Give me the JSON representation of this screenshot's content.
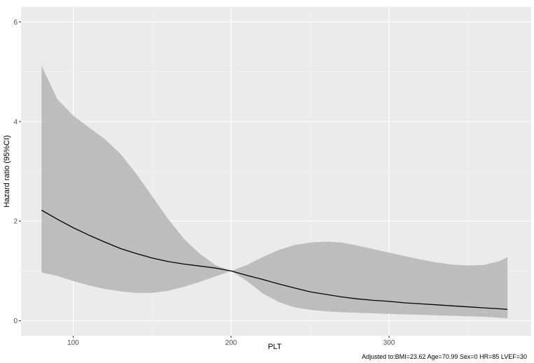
{
  "chart_data": {
    "type": "line",
    "xlabel": "PLT",
    "ylabel": "Hazard ratio (95%CI)",
    "caption": "Adjusted to:BMI=23.62 Age=70.99 Sex=0 HR=85 LVEF=30",
    "xlim": [
      67,
      390
    ],
    "ylim": [
      -0.3,
      6.3
    ],
    "x_ticks": [
      100,
      200,
      300
    ],
    "y_ticks": [
      0,
      2,
      4,
      6
    ],
    "x_minor": [
      150,
      250,
      350
    ],
    "y_minor": [
      1,
      3,
      5
    ],
    "grid": true,
    "series": [
      {
        "role": "estimate",
        "color": "#000000",
        "x": [
          80,
          90,
          100,
          110,
          120,
          130,
          140,
          150,
          160,
          170,
          180,
          190,
          200,
          210,
          220,
          230,
          240,
          250,
          260,
          270,
          280,
          290,
          300,
          310,
          320,
          330,
          340,
          350,
          360,
          370,
          375
        ],
        "y": [
          2.22,
          2.04,
          1.87,
          1.72,
          1.58,
          1.45,
          1.35,
          1.26,
          1.19,
          1.14,
          1.1,
          1.06,
          1.0,
          0.91,
          0.83,
          0.74,
          0.66,
          0.58,
          0.53,
          0.48,
          0.44,
          0.41,
          0.39,
          0.36,
          0.34,
          0.32,
          0.3,
          0.28,
          0.26,
          0.24,
          0.23
        ]
      },
      {
        "role": "ci_upper",
        "color": "#bdbdbd",
        "x": [
          80,
          90,
          100,
          110,
          120,
          130,
          140,
          150,
          160,
          170,
          180,
          190,
          200,
          210,
          220,
          230,
          240,
          250,
          260,
          270,
          280,
          290,
          300,
          310,
          320,
          330,
          340,
          350,
          360,
          370,
          375
        ],
        "y": [
          5.12,
          4.45,
          4.12,
          3.88,
          3.65,
          3.35,
          2.95,
          2.5,
          2.05,
          1.65,
          1.35,
          1.12,
          1.0,
          1.12,
          1.28,
          1.42,
          1.52,
          1.57,
          1.59,
          1.57,
          1.51,
          1.44,
          1.37,
          1.3,
          1.23,
          1.17,
          1.13,
          1.11,
          1.12,
          1.2,
          1.28
        ]
      },
      {
        "role": "ci_lower",
        "color": "#bdbdbd",
        "x": [
          80,
          90,
          100,
          110,
          120,
          130,
          140,
          150,
          160,
          170,
          180,
          190,
          200,
          210,
          220,
          230,
          240,
          250,
          260,
          270,
          280,
          290,
          300,
          310,
          320,
          330,
          340,
          350,
          360,
          370,
          375
        ],
        "y": [
          0.97,
          0.9,
          0.8,
          0.71,
          0.64,
          0.59,
          0.56,
          0.56,
          0.6,
          0.68,
          0.78,
          0.89,
          1.0,
          0.8,
          0.55,
          0.38,
          0.27,
          0.22,
          0.19,
          0.17,
          0.16,
          0.15,
          0.14,
          0.13,
          0.12,
          0.11,
          0.1,
          0.09,
          0.08,
          0.06,
          0.05
        ]
      }
    ]
  },
  "colors": {
    "panel": "#ebebeb",
    "grid_major": "#ffffff",
    "grid_minor": "#f5f5f5",
    "ribbon": "#bdbdbd",
    "line": "#000000"
  }
}
